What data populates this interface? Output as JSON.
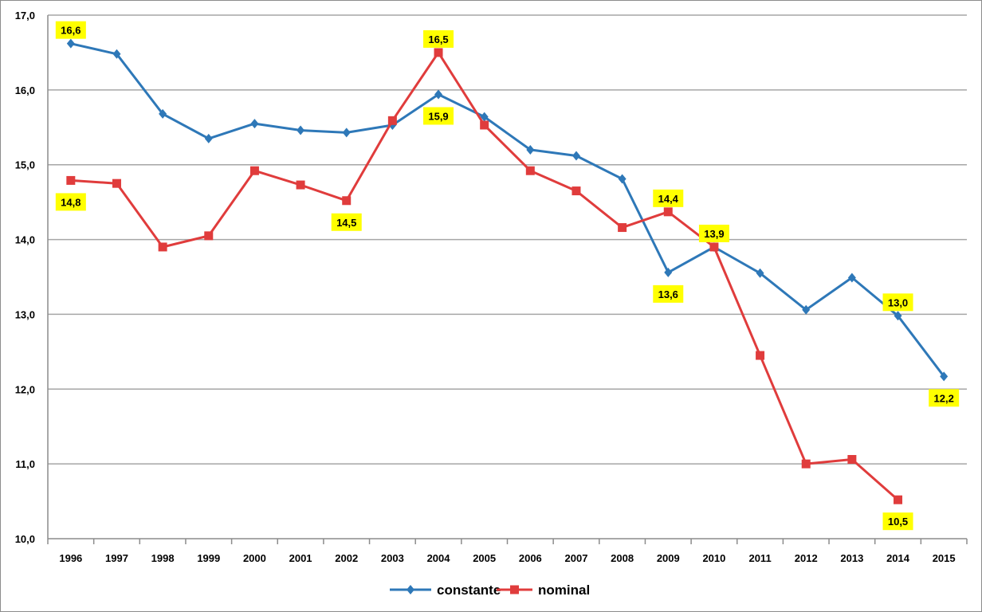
{
  "chart_data": {
    "type": "line",
    "x": [
      "1996",
      "1997",
      "1998",
      "1999",
      "2000",
      "2001",
      "2002",
      "2003",
      "2004",
      "2005",
      "2006",
      "2007",
      "2008",
      "2009",
      "2010",
      "2011",
      "2012",
      "2013",
      "2014",
      "2015"
    ],
    "ylim": [
      10,
      17
    ],
    "yticks": [
      "10,0",
      "11,0",
      "12,0",
      "13,0",
      "14,0",
      "15,0",
      "16,0",
      "17,0"
    ],
    "grid": true,
    "legend_position": "bottom",
    "series": [
      {
        "name": "constante",
        "color": "#2e78b8",
        "marker": "diamond",
        "values": [
          16.62,
          16.48,
          15.68,
          15.35,
          15.55,
          15.46,
          15.43,
          15.53,
          15.94,
          15.64,
          15.2,
          15.12,
          14.81,
          13.56,
          13.9,
          13.55,
          13.06,
          13.49,
          12.98,
          12.17
        ]
      },
      {
        "name": "nominal",
        "color": "#e03c3c",
        "marker": "square",
        "values": [
          14.79,
          14.75,
          13.9,
          14.05,
          14.92,
          14.73,
          14.52,
          15.59,
          16.5,
          15.53,
          14.92,
          14.65,
          14.16,
          14.37,
          13.9,
          12.45,
          11.0,
          11.06,
          10.52,
          null
        ]
      }
    ],
    "annotations": [
      {
        "text": "16,6",
        "series": 0,
        "index": 0,
        "pos": "above"
      },
      {
        "text": "15,9",
        "series": 0,
        "index": 8,
        "pos": "below"
      },
      {
        "text": "13,6",
        "series": 0,
        "index": 13,
        "pos": "below"
      },
      {
        "text": "13,0",
        "series": 0,
        "index": 18,
        "pos": "above"
      },
      {
        "text": "12,2",
        "series": 0,
        "index": 19,
        "pos": "below"
      },
      {
        "text": "14,8",
        "series": 1,
        "index": 0,
        "pos": "below"
      },
      {
        "text": "14,5",
        "series": 1,
        "index": 6,
        "pos": "below"
      },
      {
        "text": "16,5",
        "series": 1,
        "index": 8,
        "pos": "above"
      },
      {
        "text": "14,4",
        "series": 1,
        "index": 13,
        "pos": "above"
      },
      {
        "text": "13,9",
        "series": 1,
        "index": 14,
        "pos": "above"
      },
      {
        "text": "10,5",
        "series": 1,
        "index": 18,
        "pos": "below"
      }
    ]
  }
}
